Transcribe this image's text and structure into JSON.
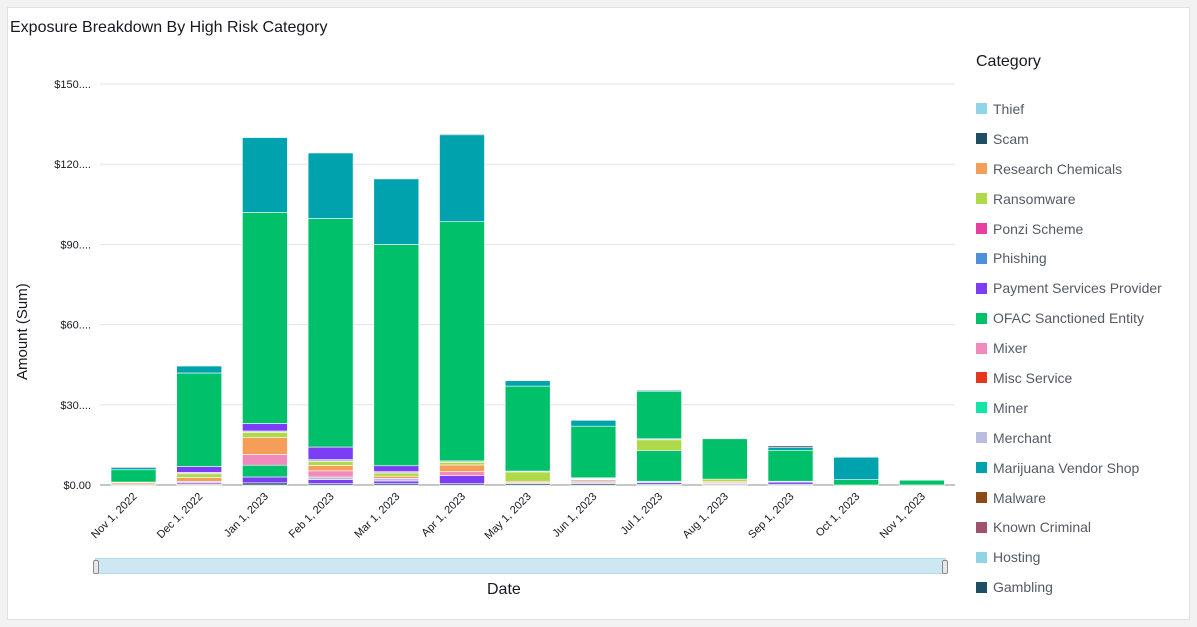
{
  "title": "Exposure Breakdown By High Risk Category",
  "legend_title": "Category",
  "xaxis_title": "Date",
  "yaxis_title": "Amount (Sum)",
  "categories_legend": [
    {
      "name": "Thief",
      "color": "#8fd5e6"
    },
    {
      "name": "Scam",
      "color": "#1f4e64"
    },
    {
      "name": "Research Chemicals",
      "color": "#f59e59"
    },
    {
      "name": "Ransomware",
      "color": "#b0d94a"
    },
    {
      "name": "Ponzi Scheme",
      "color": "#e83ea3"
    },
    {
      "name": "Phishing",
      "color": "#4f8fdc"
    },
    {
      "name": "Payment Services Provider",
      "color": "#7b3ef5"
    },
    {
      "name": "OFAC Sanctioned Entity",
      "color": "#00c16a"
    },
    {
      "name": "Mixer",
      "color": "#f28bbd"
    },
    {
      "name": "Misc Service",
      "color": "#e4381f"
    },
    {
      "name": "Miner",
      "color": "#12e6a6"
    },
    {
      "name": "Merchant",
      "color": "#b8bedf"
    },
    {
      "name": "Marijuana Vendor Shop",
      "color": "#00a3ad"
    },
    {
      "name": "Malware",
      "color": "#8a4b14"
    },
    {
      "name": "Known Criminal",
      "color": "#a0526b"
    },
    {
      "name": "Hosting",
      "color": "#8fd5e6"
    },
    {
      "name": "Gambling",
      "color": "#1f4e64"
    }
  ],
  "chart_data": {
    "type": "bar",
    "stacked": true,
    "title": "Exposure Breakdown By High Risk Category",
    "xlabel": "Date",
    "ylabel": "Amount (Sum)",
    "ylim": [
      0,
      150
    ],
    "yticks": [
      "$0.00",
      "$30....",
      "$60....",
      "$90....",
      "$120....",
      "$150...."
    ],
    "ytick_values": [
      0,
      30,
      60,
      90,
      120,
      150
    ],
    "grid": true,
    "legend_position": "right",
    "categories": [
      "Nov 1, 2022",
      "Dec 1, 2022",
      "Jan 1, 2023",
      "Feb 1, 2023",
      "Mar 1, 2023",
      "Apr 1, 2023",
      "May 1, 2023",
      "Jun 1, 2023",
      "Jul 1, 2023",
      "Aug 1, 2023",
      "Sep 1, 2023",
      "Oct 1, 2023",
      "Nov 1, 2023"
    ],
    "series": [
      {
        "name": "Malware",
        "color": "#8a4b14",
        "values": [
          0.3,
          0.3,
          0,
          0,
          0,
          0,
          0,
          0,
          0,
          0,
          0,
          0,
          0
        ]
      },
      {
        "name": "Gambling",
        "color": "#1f4e64",
        "values": [
          0,
          0,
          0.8,
          0.5,
          0.5,
          0.5,
          0.5,
          0.5,
          0.3,
          0.3,
          0.3,
          0,
          0
        ]
      },
      {
        "name": "Payment Services Provider",
        "color": "#7b3ef5",
        "values": [
          0,
          0.5,
          2.2,
          1.5,
          1.0,
          3.0,
          0,
          0.3,
          0.6,
          0.3,
          0.8,
          0,
          0
        ]
      },
      {
        "name": "Merchant",
        "color": "#b8bedf",
        "values": [
          0,
          0.5,
          0,
          1.0,
          1.0,
          0,
          0.4,
          0.7,
          0.5,
          0.3,
          0.3,
          0,
          0
        ]
      },
      {
        "name": "OFAC Sanctioned Entity",
        "color": "#00c16a",
        "values": [
          0,
          0,
          4.4,
          0,
          0,
          0,
          0,
          0,
          11.5,
          0,
          0,
          0,
          0
        ]
      },
      {
        "name": "Mixer",
        "color": "#f28bbd",
        "values": [
          0,
          0,
          4.0,
          2.3,
          0,
          1.5,
          0,
          0,
          0,
          0,
          0,
          0,
          0
        ]
      },
      {
        "name": "Research Chemicals",
        "color": "#f59e59",
        "values": [
          0.5,
          1.5,
          6.3,
          2.0,
          0.8,
          2.5,
          0.5,
          0.5,
          0,
          0.5,
          0,
          0,
          0
        ]
      },
      {
        "name": "Ransomware",
        "color": "#b0d94a",
        "values": [
          0.3,
          1.4,
          2.0,
          1.5,
          1.2,
          1.0,
          3.5,
          0.2,
          4.0,
          0.8,
          0,
          0,
          0
        ]
      },
      {
        "name": "Merchant",
        "color": "#b8bedf",
        "values": [
          0,
          0.5,
          0.5,
          0.7,
          0.5,
          0.5,
          0.3,
          0.3,
          0.4,
          0,
          0,
          0,
          0
        ]
      },
      {
        "name": "Payment Services Provider",
        "color": "#7b3ef5",
        "values": [
          0,
          2.2,
          2.8,
          4.7,
          2.2,
          0,
          0,
          0.2,
          0,
          0,
          0,
          0,
          0
        ]
      },
      {
        "name": "OFAC Sanctioned Entity",
        "color": "#00c16a",
        "values": [
          4.6,
          35.0,
          79.0,
          85.5,
          82.8,
          89.5,
          31.8,
          19.3,
          17.6,
          15.1,
          11.6,
          2.0,
          1.8
        ]
      },
      {
        "name": "Marijuana Vendor Shop",
        "color": "#00a3ad",
        "values": [
          0.8,
          2.6,
          28.0,
          24.5,
          24.5,
          32.5,
          2.0,
          2.2,
          0.5,
          0.2,
          1.0,
          8.4,
          0
        ]
      },
      {
        "name": "Gambling",
        "color": "#1f4e64",
        "values": [
          0.3,
          0,
          0.2,
          0,
          0,
          0.3,
          0,
          0,
          0,
          0,
          0.6,
          0,
          0
        ]
      }
    ]
  }
}
